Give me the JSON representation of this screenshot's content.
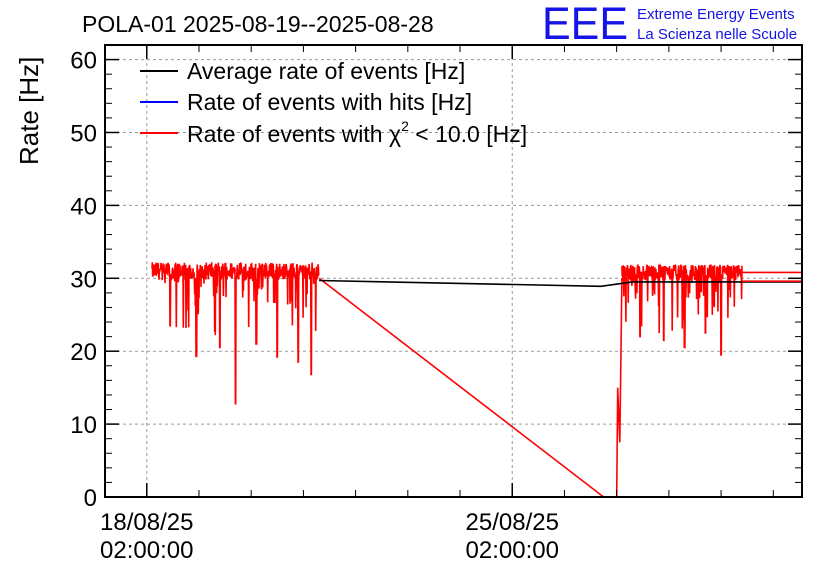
{
  "chart_data": {
    "type": "line",
    "title": "POLA-01 2025-08-19--2025-08-28",
    "ylabel": "Rate [Hz]",
    "xlabel": "",
    "ylim": [
      0,
      62
    ],
    "yticks": [
      0,
      10,
      20,
      30,
      40,
      50,
      60
    ],
    "ytick_labels": [
      "0",
      "10",
      "20",
      "30",
      "40",
      "50",
      "60"
    ],
    "xlim_days": [
      -0.8,
      12.55
    ],
    "xticks": [
      {
        "day": 0,
        "date": "18/08/25",
        "time": "02:00:00"
      },
      {
        "day": 7,
        "date": "25/08/25",
        "time": "02:00:00"
      }
    ],
    "grid": true,
    "legend_position": "top-left",
    "series": [
      {
        "name": "Average rate of events [Hz]",
        "color": "#000000",
        "points": [
          [
            3.3,
            29.7
          ],
          [
            8.7,
            28.9
          ],
          [
            9.3,
            29.5
          ],
          [
            12.55,
            29.5
          ]
        ]
      },
      {
        "name": "Rate of events with hits [Hz]",
        "color": "#0000ff",
        "points": []
      },
      {
        "name": "Rate of events with χ² < 10.0 [Hz]",
        "name_prefix": "Rate of events with ",
        "name_chi": "χ",
        "name_sup": "2",
        "name_suffix": " < 10.0 [Hz]",
        "color": "#ff0000",
        "noisy_segments": [
          {
            "start": 0.1,
            "end": 3.3,
            "level": 31.0,
            "noise": 1.2,
            "dips": [
              [
                0.45,
                23.5
              ],
              [
                0.95,
                19.3
              ],
              [
                1.4,
                20.5
              ],
              [
                1.7,
                12.8
              ],
              [
                2.1,
                21.0
              ],
              [
                2.5,
                19.2
              ],
              [
                2.9,
                18.5
              ],
              [
                3.15,
                16.8
              ]
            ]
          },
          {
            "start": 9.1,
            "end": 11.4,
            "level": 30.8,
            "noise": 1.1,
            "dips": [
              [
                9.45,
                22.0
              ],
              [
                9.9,
                21.5
              ],
              [
                10.3,
                20.5
              ],
              [
                10.7,
                22.5
              ],
              [
                11.0,
                19.5
              ]
            ]
          }
        ],
        "points": [
          [
            3.3,
            30.0
          ],
          [
            8.75,
            0.0
          ],
          [
            9.0,
            0.0
          ],
          [
            9.02,
            15.0
          ],
          [
            9.06,
            7.5
          ],
          [
            9.1,
            30.0
          ]
        ],
        "tail_lines": [
          [
            11.4,
            12.55,
            29.6
          ],
          [
            11.4,
            12.55,
            30.8
          ]
        ]
      }
    ]
  },
  "logo": {
    "text": "EEE",
    "line1": "Extreme Energy Events",
    "line2": "La Scienza nelle Scuole"
  },
  "colors": {
    "grid": "#9a9a9a",
    "logo": "#1414e6"
  }
}
